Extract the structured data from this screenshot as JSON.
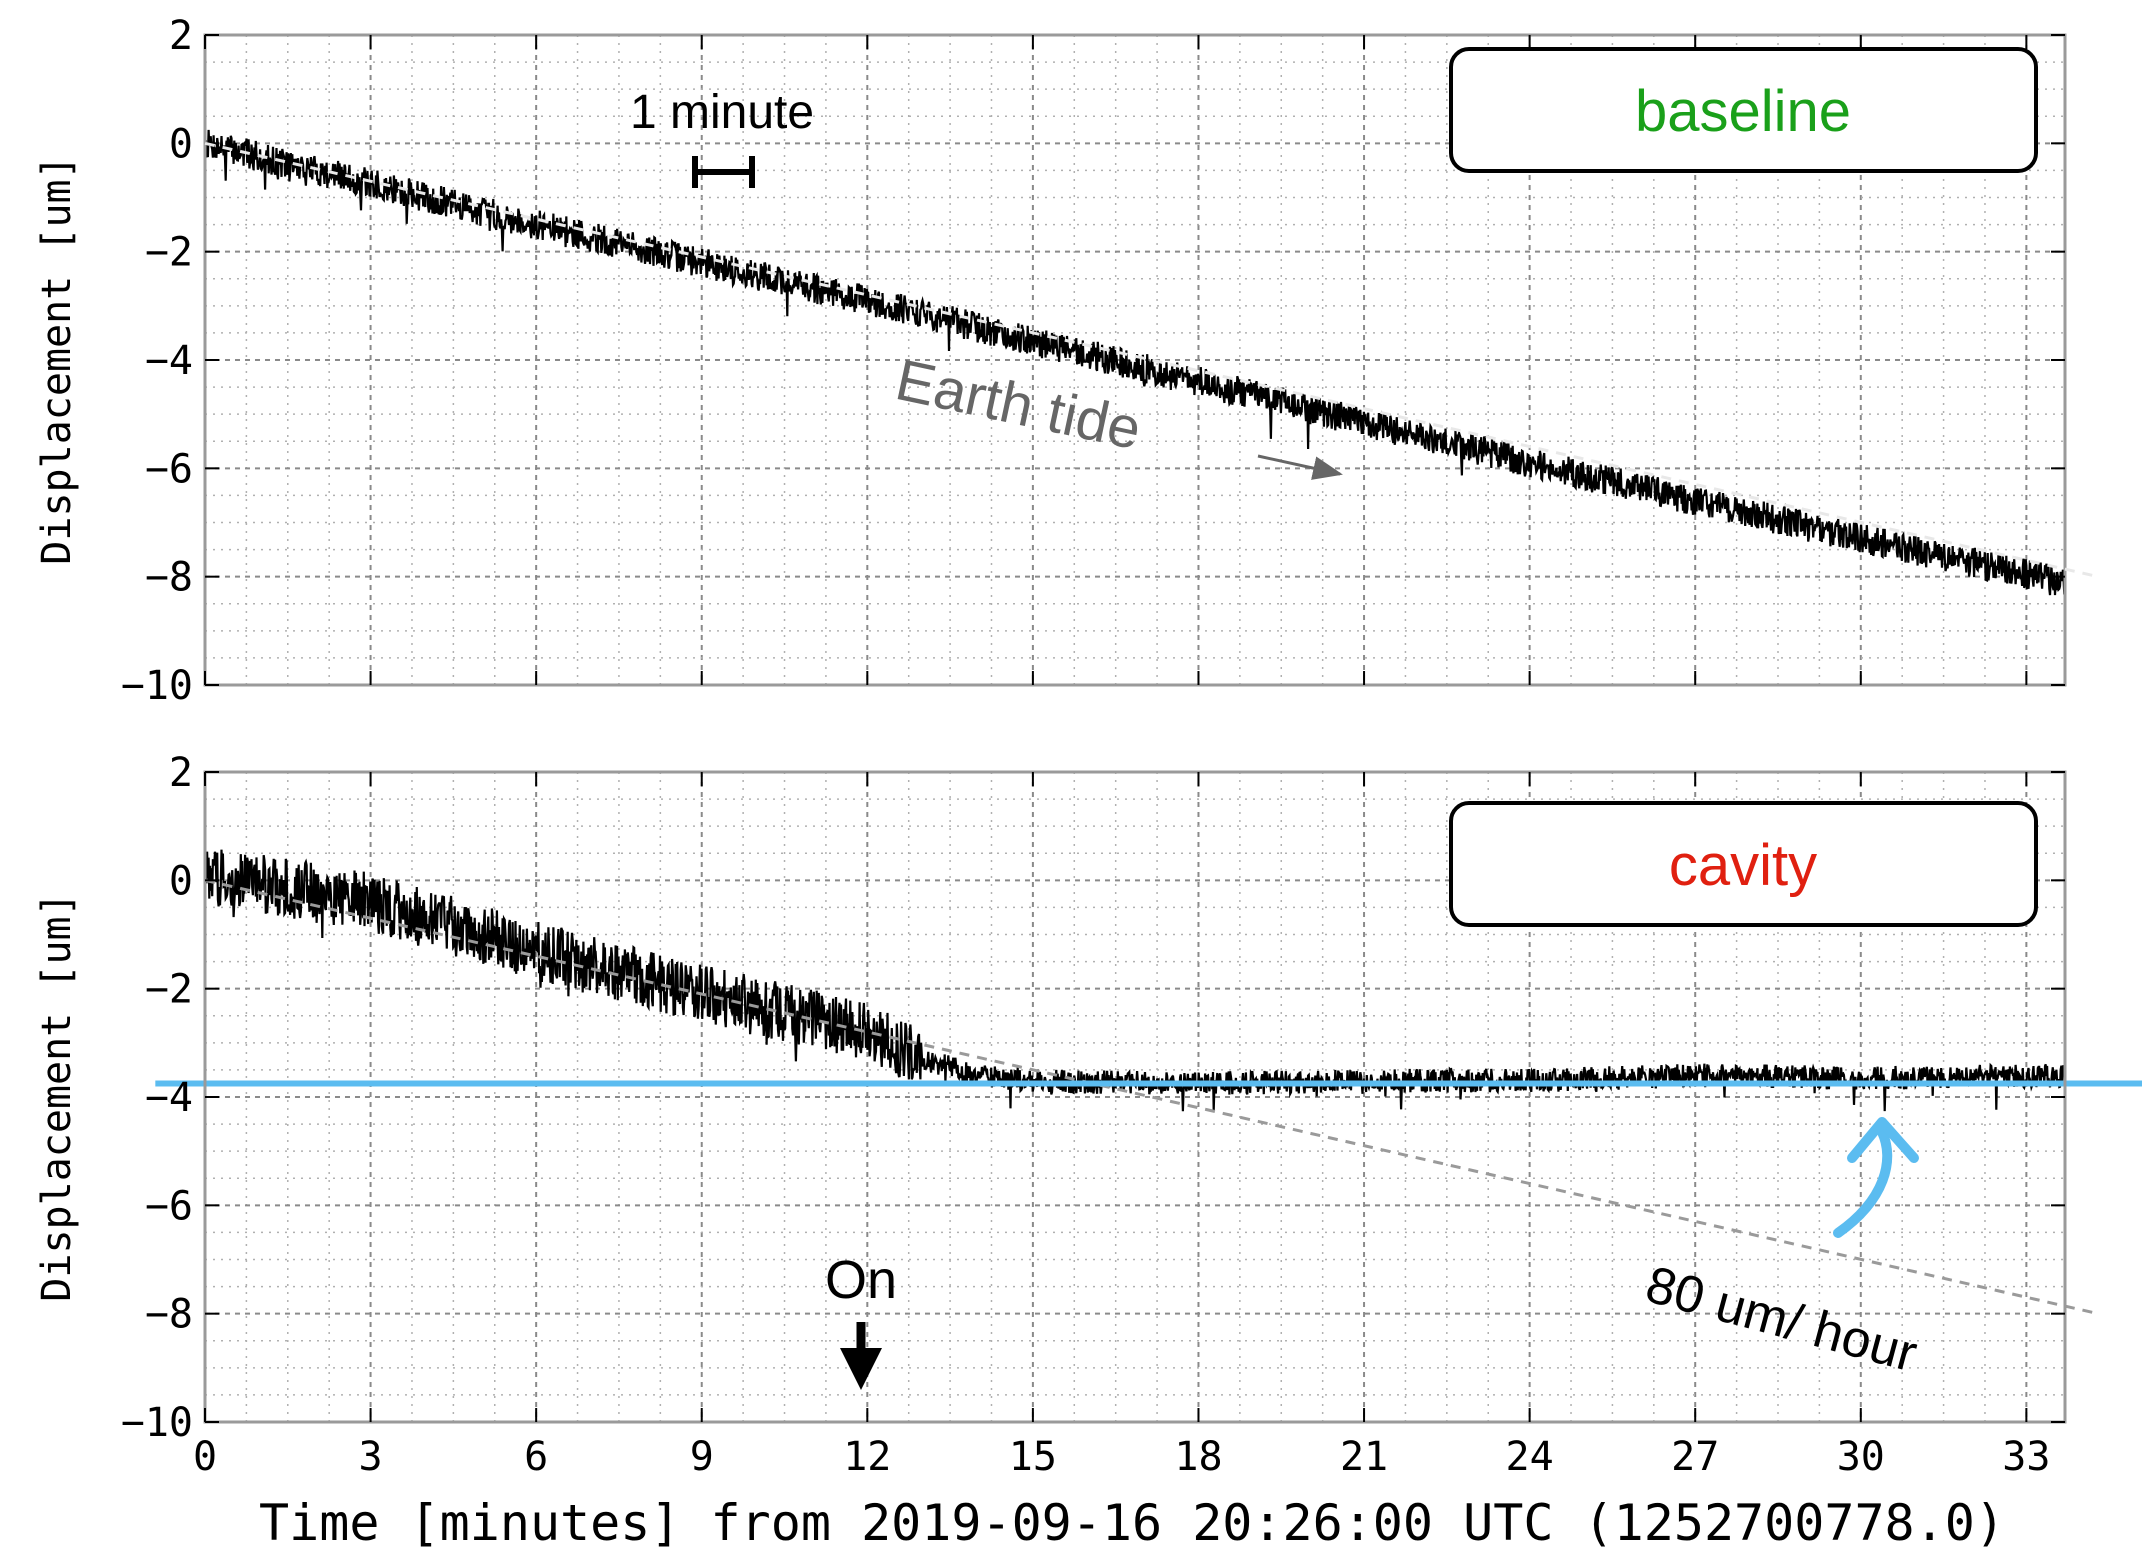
{
  "figure": {
    "xlabel": "Time [minutes] from 2019-09-16 20:26:00 UTC (1252700778.0)",
    "colors": {
      "trace": "#000000",
      "trend": "#9a9a9a",
      "level": "#5bbcf0",
      "baseline_label": "#1aa01a",
      "cavity_label": "#e02010",
      "annotation_gray": "#666666"
    }
  },
  "chart_data": [
    {
      "type": "line",
      "panel": "top",
      "ylabel": "Displacement [um]",
      "xlim": [
        0,
        33.7
      ],
      "ylim": [
        -10,
        2
      ],
      "xticks": [
        0,
        3,
        6,
        9,
        12,
        15,
        18,
        21,
        24,
        27,
        30,
        33
      ],
      "yticks": [
        2,
        0,
        -2,
        -4,
        -6,
        -8,
        -10
      ],
      "xtick_labels": [
        "0",
        "3",
        "6",
        "9",
        "12",
        "15",
        "18",
        "21",
        "24",
        "27",
        "30",
        "33"
      ],
      "ytick_labels": [
        "2",
        "0",
        "−2",
        "−4",
        "−6",
        "−8",
        "−10"
      ],
      "grid": true,
      "label_box": "baseline",
      "series": [
        {
          "style": "solid",
          "x": [
            0,
            6,
            12,
            18,
            24,
            30,
            33.7
          ],
          "y": [
            0,
            -1.5,
            -2.9,
            -4.4,
            -5.9,
            -7.3,
            -8.1
          ]
        },
        {
          "style": "dashed",
          "x": [
            0,
            34.3
          ],
          "y": [
            0,
            -8.0
          ]
        }
      ],
      "annotations": {
        "scale_bar": "1 minute",
        "trend_label": "Earth tide"
      }
    },
    {
      "type": "line",
      "panel": "bottom",
      "ylabel": "Displacement [um]",
      "xlim": [
        0,
        33.7
      ],
      "ylim": [
        -10,
        2
      ],
      "xticks": [
        0,
        3,
        6,
        9,
        12,
        15,
        18,
        21,
        24,
        27,
        30,
        33
      ],
      "yticks": [
        2,
        0,
        -2,
        -4,
        -6,
        -8,
        -10
      ],
      "xtick_labels": [
        "0",
        "3",
        "6",
        "9",
        "12",
        "15",
        "18",
        "21",
        "24",
        "27",
        "30",
        "33"
      ],
      "ytick_labels": [
        "2",
        "0",
        "−2",
        "−4",
        "−6",
        "−8",
        "−10"
      ],
      "grid": true,
      "label_box": "cavity",
      "series": [
        {
          "style": "solid",
          "x": [
            0,
            3,
            6,
            9,
            12,
            13,
            14,
            15,
            18,
            21,
            24,
            27,
            30,
            33.7
          ],
          "y": [
            0.1,
            -0.4,
            -1.3,
            -2.1,
            -2.8,
            -3.3,
            -3.6,
            -3.7,
            -3.75,
            -3.7,
            -3.7,
            -3.6,
            -3.65,
            -3.6
          ]
        },
        {
          "style": "dashed",
          "x": [
            0,
            34.3
          ],
          "y": [
            0,
            -8.0
          ]
        },
        {
          "style": "level",
          "x": [
            -0.9,
            35.5
          ],
          "y": [
            -3.75,
            -3.75
          ]
        }
      ],
      "annotations": {
        "marker_label": "On",
        "marker_x": 12,
        "rate_label": "80 um/ hour"
      }
    }
  ]
}
